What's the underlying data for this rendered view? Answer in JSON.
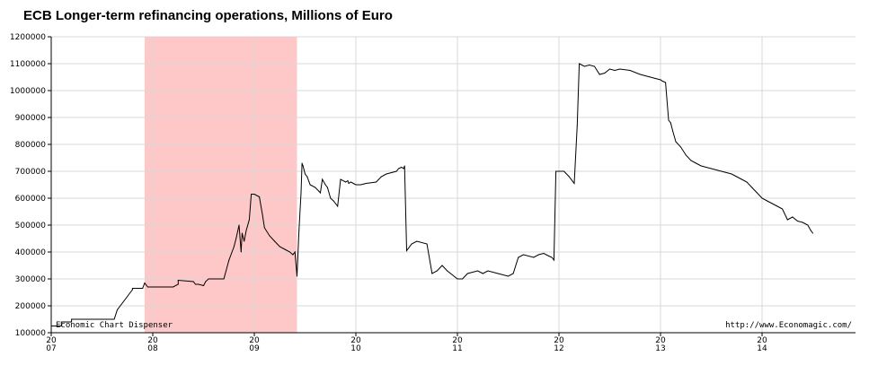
{
  "chart_data": {
    "type": "line",
    "title": "ECB Longer-term refinancing operations, Millions of Euro",
    "xlabel": "",
    "ylabel": "",
    "ylim": [
      100000,
      1200000
    ],
    "xlim": [
      2007.0,
      2016.0
    ],
    "yticks": [
      100000,
      200000,
      300000,
      400000,
      500000,
      600000,
      700000,
      800000,
      900000,
      1000000,
      1100000,
      1200000
    ],
    "xticks": [
      {
        "year": 2007,
        "top": "20",
        "bottom": "07"
      },
      {
        "year": 2008,
        "top": "20",
        "bottom": "08"
      },
      {
        "year": 2009,
        "top": "20",
        "bottom": "09"
      },
      {
        "year": 2010,
        "top": "20",
        "bottom": "10"
      },
      {
        "year": 2011,
        "top": "20",
        "bottom": "11"
      },
      {
        "year": 2012,
        "top": "20",
        "bottom": "12"
      },
      {
        "year": 2013,
        "top": "20",
        "bottom": "13"
      },
      {
        "year": 2014,
        "top": "20",
        "bottom": "14"
      }
    ],
    "grid": true,
    "recession": {
      "start": 2007.92,
      "end": 2009.42,
      "color": "#ffc8c8"
    },
    "line_color": "#000000",
    "series": [
      {
        "x": [
          2007.0,
          2007.1,
          2007.1,
          2007.2,
          2007.2,
          2007.6,
          2007.62,
          2007.65,
          2007.65,
          2007.8,
          2007.8,
          2007.9,
          2007.92,
          2007.93,
          2007.95,
          2008.0,
          2008.2,
          2008.25,
          2008.25,
          2008.4,
          2008.42,
          2008.45,
          2008.5,
          2008.52,
          2008.55,
          2008.6,
          2008.65,
          2008.7,
          2008.75,
          2008.8,
          2008.82,
          2008.85,
          2008.87,
          2008.88,
          2008.9,
          2008.92,
          2008.95,
          2008.97,
          2009.0,
          2009.05,
          2009.08,
          2009.1,
          2009.15,
          2009.2,
          2009.25,
          2009.3,
          2009.35,
          2009.38,
          2009.4,
          2009.42,
          2009.44,
          2009.46,
          2009.47,
          2009.48,
          2009.5,
          2009.52,
          2009.55,
          2009.6,
          2009.65,
          2009.67,
          2009.7,
          2009.72,
          2009.75,
          2009.78,
          2009.8,
          2009.82,
          2009.85,
          2009.9,
          2009.92,
          2009.93,
          2009.95,
          2010.0,
          2010.05,
          2010.1,
          2010.2,
          2010.25,
          2010.3,
          2010.4,
          2010.42,
          2010.45,
          2010.47,
          2010.48,
          2010.5,
          2010.55,
          2010.6,
          2010.7,
          2010.75,
          2010.8,
          2010.85,
          2010.9,
          2011.0,
          2011.05,
          2011.1,
          2011.2,
          2011.25,
          2011.3,
          2011.4,
          2011.5,
          2011.55,
          2011.6,
          2011.65,
          2011.75,
          2011.8,
          2011.85,
          2011.9,
          2011.93,
          2011.95,
          2011.97,
          2012.0,
          2012.05,
          2012.1,
          2012.15,
          2012.18,
          2012.2,
          2012.25,
          2012.3,
          2012.35,
          2012.4,
          2012.45,
          2012.5,
          2012.55,
          2012.6,
          2012.7,
          2012.8,
          2012.9,
          2013.0,
          2013.02,
          2013.05,
          2013.08,
          2013.1,
          2013.12,
          2013.15,
          2013.2,
          2013.25,
          2013.3,
          2013.35,
          2013.4,
          2013.5,
          2013.6,
          2013.65,
          2013.7,
          2013.75,
          2013.8,
          2013.85,
          2013.9,
          2013.95,
          2014.0,
          2014.05,
          2014.1,
          2014.15,
          2014.2,
          2014.25,
          2014.3,
          2014.35,
          2014.4,
          2014.45,
          2014.48,
          2014.5
        ],
        "y": [
          125000,
          125000,
          140000,
          140000,
          150000,
          150000,
          150000,
          185000,
          185000,
          260000,
          265000,
          265000,
          285000,
          280000,
          270000,
          270000,
          270000,
          280000,
          295000,
          290000,
          280000,
          280000,
          275000,
          290000,
          300000,
          300000,
          300000,
          300000,
          370000,
          420000,
          450000,
          500000,
          400000,
          470000,
          440000,
          480000,
          520000,
          615000,
          615000,
          605000,
          540000,
          490000,
          460000,
          440000,
          420000,
          410000,
          400000,
          390000,
          400000,
          310000,
          480000,
          620000,
          730000,
          720000,
          690000,
          680000,
          650000,
          640000,
          620000,
          670000,
          650000,
          640000,
          600000,
          590000,
          580000,
          570000,
          670000,
          660000,
          665000,
          655000,
          660000,
          650000,
          650000,
          655000,
          660000,
          680000,
          690000,
          700000,
          710000,
          715000,
          710000,
          720000,
          405000,
          430000,
          440000,
          430000,
          320000,
          330000,
          350000,
          330000,
          300000,
          300000,
          320000,
          330000,
          320000,
          330000,
          320000,
          310000,
          320000,
          380000,
          390000,
          380000,
          390000,
          395000,
          385000,
          380000,
          370000,
          700000,
          700000,
          700000,
          680000,
          655000,
          870000,
          1100000,
          1090000,
          1095000,
          1090000,
          1060000,
          1065000,
          1080000,
          1075000,
          1080000,
          1075000,
          1060000,
          1050000,
          1040000,
          1035000,
          1030000,
          890000,
          880000,
          850000,
          810000,
          790000,
          760000,
          740000,
          730000,
          720000,
          710000,
          700000,
          695000,
          690000,
          680000,
          670000,
          660000,
          640000,
          620000,
          600000,
          590000,
          580000,
          570000,
          560000,
          520000,
          530000,
          515000,
          510000,
          500000,
          480000,
          470000
        ]
      }
    ]
  },
  "footer": {
    "left_credit": "Economic Chart Dispenser",
    "right_credit": "http://www.Economagic.com/"
  }
}
